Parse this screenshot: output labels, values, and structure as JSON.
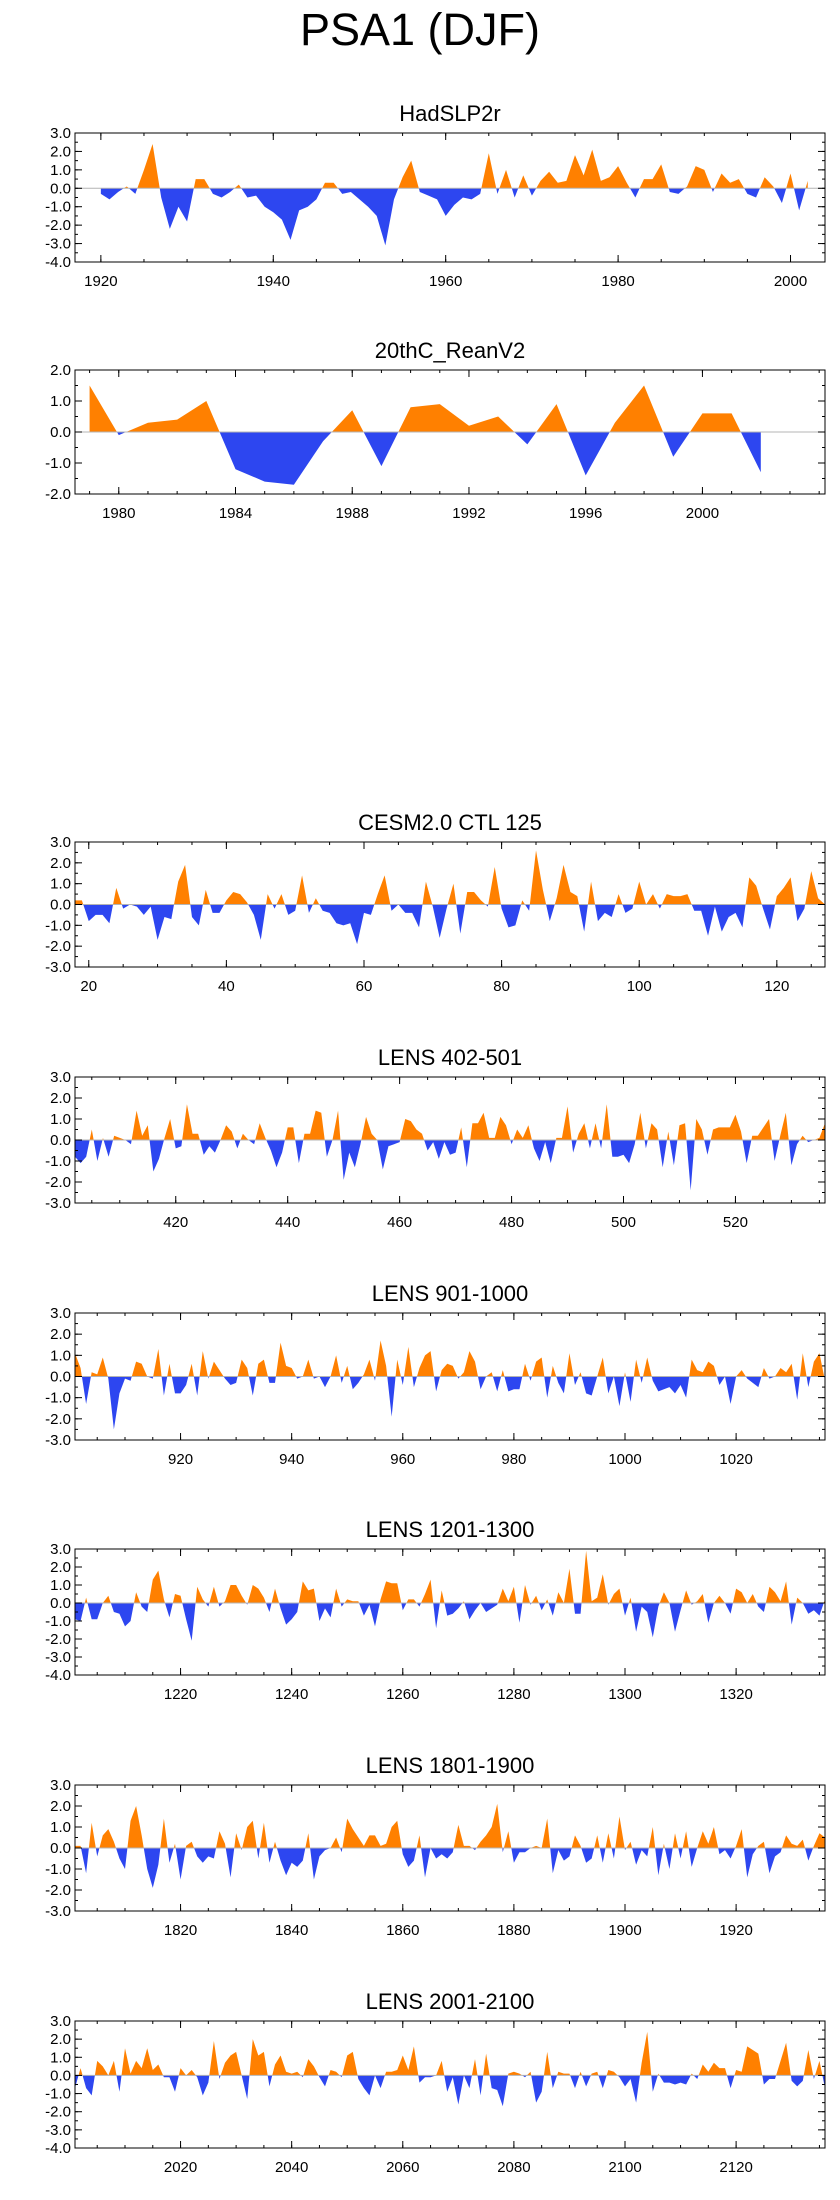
{
  "title": "PSA1 (DJF)",
  "colors": {
    "positive": "#ff8000",
    "negative": "#2d46f0",
    "axis": "#000000",
    "zero_line": "#b4b4b4"
  },
  "chart_data": [
    {
      "type": "area",
      "title": "HadSLP2r",
      "xlim": [
        1917,
        2004
      ],
      "ylim": [
        -4.0,
        3.0
      ],
      "yticks": [
        "3.0",
        "2.0",
        "1.0",
        "0.0",
        "-1.0",
        "-2.0",
        "-3.0",
        "-4.0"
      ],
      "xticks": [
        1920,
        1940,
        1960,
        1980,
        2000
      ],
      "x": [
        1920,
        1921,
        1922,
        1923,
        1924,
        1925,
        1926,
        1927,
        1928,
        1929,
        1930,
        1931,
        1932,
        1933,
        1934,
        1935,
        1936,
        1937,
        1938,
        1939,
        1940,
        1941,
        1942,
        1943,
        1944,
        1945,
        1946,
        1947,
        1948,
        1949,
        1950,
        1951,
        1952,
        1953,
        1954,
        1955,
        1956,
        1957,
        1958,
        1959,
        1960,
        1961,
        1962,
        1963,
        1964,
        1965,
        1966,
        1967,
        1968,
        1969,
        1970,
        1971,
        1972,
        1973,
        1974,
        1975,
        1976,
        1977,
        1978,
        1979,
        1980,
        1981,
        1982,
        1983,
        1984,
        1985,
        1986,
        1987,
        1988,
        1989,
        1990,
        1991,
        1992,
        1993,
        1994,
        1995,
        1996,
        1997,
        1998,
        1999,
        2000,
        2001,
        2002
      ],
      "y": [
        -0.3,
        -0.6,
        -0.2,
        0.1,
        -0.3,
        1.0,
        2.4,
        -0.5,
        -2.2,
        -1.0,
        -1.8,
        0.5,
        0.5,
        -0.3,
        -0.5,
        -0.2,
        0.2,
        -0.5,
        -0.4,
        -1.0,
        -1.3,
        -1.7,
        -2.8,
        -1.2,
        -1.0,
        -0.6,
        0.3,
        0.3,
        -0.3,
        -0.2,
        -0.6,
        -1.0,
        -1.5,
        -3.1,
        -0.6,
        0.6,
        1.5,
        -0.2,
        -0.4,
        -0.6,
        -1.5,
        -0.9,
        -0.5,
        -0.6,
        -0.3,
        1.9,
        -0.3,
        1.0,
        -0.5,
        0.7,
        -0.4,
        0.4,
        0.9,
        0.3,
        0.4,
        1.8,
        0.7,
        2.1,
        0.4,
        0.6,
        1.2,
        0.3,
        -0.5,
        0.5,
        0.5,
        1.3,
        -0.2,
        -0.3,
        0.1,
        1.2,
        1.0,
        -0.2,
        0.8,
        0.3,
        0.5,
        -0.3,
        -0.5,
        0.6,
        0.1,
        -0.8,
        0.8,
        -1.2,
        0.4
      ]
    },
    {
      "type": "area",
      "title": "20thC_ReanV2",
      "xlim": [
        1978.5,
        2004.2
      ],
      "ylim": [
        -2.0,
        2.0
      ],
      "yticks": [
        "2.0",
        "1.0",
        "0.0",
        "-1.0",
        "-2.0"
      ],
      "xticks": [
        1980,
        1984,
        1988,
        1992,
        1996,
        2000
      ],
      "x": [
        1979,
        1980,
        1981,
        1982,
        1983,
        1984,
        1985,
        1986,
        1987,
        1988,
        1989,
        1990,
        1991,
        1992,
        1993,
        1994,
        1995,
        1996,
        1997,
        1998,
        1999,
        2000,
        2001,
        2002
      ],
      "y": [
        1.5,
        -0.1,
        0.3,
        0.4,
        1.0,
        -1.2,
        -1.6,
        -1.7,
        -0.3,
        0.7,
        -1.1,
        0.8,
        0.9,
        0.2,
        0.5,
        -0.4,
        0.9,
        -1.4,
        0.3,
        1.5,
        -0.8,
        0.6,
        0.6,
        -1.3
      ]
    },
    {
      "type": "area",
      "title": "CESM2.0 CTL 125",
      "xlim": [
        18,
        127
      ],
      "ylim": [
        -3.0,
        3.0
      ],
      "yticks": [
        "3.0",
        "2.0",
        "1.0",
        "0.0",
        "-1.0",
        "-2.0",
        "-3.0"
      ],
      "xticks": [
        20,
        40,
        60,
        80,
        100,
        120
      ],
      "seed": 7,
      "start": 18,
      "count": 110,
      "peak": 2.6
    },
    {
      "type": "area",
      "title": "LENS 402-501",
      "xlim": [
        402,
        536
      ],
      "ylim": [
        -3.0,
        3.0
      ],
      "yticks": [
        "3.0",
        "2.0",
        "1.0",
        "0.0",
        "-1.0",
        "-2.0",
        "-3.0"
      ],
      "xticks": [
        420,
        440,
        460,
        480,
        500,
        520
      ],
      "seed": 13,
      "start": 402,
      "count": 135,
      "peak": 2.5
    },
    {
      "type": "area",
      "title": "LENS 901-1000",
      "xlim": [
        901,
        1036
      ],
      "ylim": [
        -3.0,
        3.0
      ],
      "yticks": [
        "3.0",
        "2.0",
        "1.0",
        "0.0",
        "-1.0",
        "-2.0",
        "-3.0"
      ],
      "xticks": [
        920,
        940,
        960,
        980,
        1000,
        1020
      ],
      "seed": 29,
      "start": 901,
      "count": 136,
      "peak": 2.4
    },
    {
      "type": "area",
      "title": "LENS 1201-1300",
      "xlim": [
        1201,
        1336
      ],
      "ylim": [
        -4.0,
        3.0
      ],
      "yticks": [
        "3.0",
        "2.0",
        "1.0",
        "0.0",
        "-1.0",
        "-2.0",
        "-3.0",
        "-4.0"
      ],
      "xticks": [
        1220,
        1240,
        1260,
        1280,
        1300,
        1320
      ],
      "seed": 41,
      "start": 1201,
      "count": 136,
      "peak": 3.0
    },
    {
      "type": "area",
      "title": "LENS 1801-1900",
      "xlim": [
        1801,
        1936
      ],
      "ylim": [
        -3.0,
        3.0
      ],
      "yticks": [
        "3.0",
        "2.0",
        "1.0",
        "0.0",
        "-1.0",
        "-2.0",
        "-3.0"
      ],
      "xticks": [
        1820,
        1840,
        1860,
        1880,
        1900,
        1920
      ],
      "seed": 53,
      "start": 1801,
      "count": 136,
      "peak": 2.5
    },
    {
      "type": "area",
      "title": "LENS 2001-2100",
      "xlim": [
        2001,
        2136
      ],
      "ylim": [
        -4.0,
        3.0
      ],
      "yticks": [
        "3.0",
        "2.0",
        "1.0",
        "0.0",
        "-1.0",
        "-2.0",
        "-3.0",
        "-4.0"
      ],
      "xticks": [
        2020,
        2040,
        2060,
        2080,
        2100,
        2120
      ],
      "seed": 67,
      "start": 2001,
      "count": 136,
      "peak": 2.6
    }
  ]
}
